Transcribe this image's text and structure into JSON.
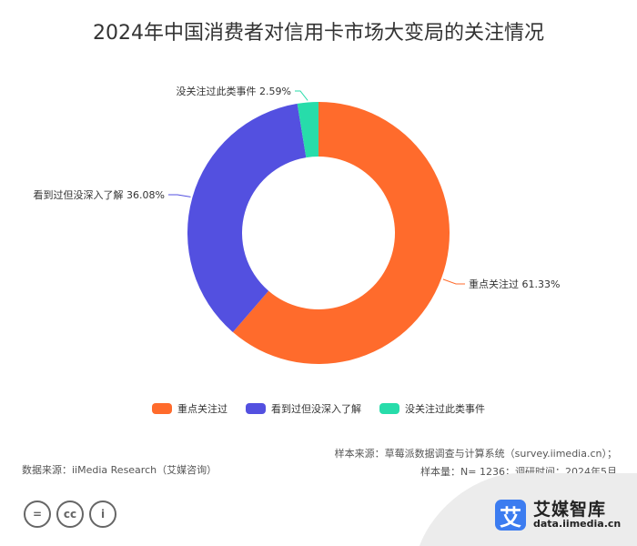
{
  "chart_data": {
    "type": "pie",
    "title": "2024年中国消费者对信用卡市场大变局的关注情况",
    "donut": true,
    "categories": [
      "重点关注过",
      "看到过但没深入了解",
      "没关注过此类事件"
    ],
    "values": [
      61.33,
      36.08,
      2.59
    ],
    "data_labels": [
      "重点关注过 61.33%",
      "看到过但没深入了解 36.08%",
      "没关注过此类事件 2.59%"
    ],
    "colors": [
      "#ff6b2c",
      "#5350e0",
      "#27dcaa"
    ],
    "legend_position": "bottom"
  },
  "footer": {
    "source_left": "数据来源：iiMedia Research（艾媒咨询）",
    "sample_source": "样本来源：草莓派数据调查与计算系统（survey.iimedia.cn）；",
    "sample_info": "样本量：N= 1236；调研时间：2024年5月"
  },
  "brand": {
    "logo_char": "艾",
    "name": "艾媒智库",
    "url": "data.iimedia.cn"
  },
  "license": {
    "badge1": "=",
    "badge2": "cc",
    "badge3": "i"
  }
}
